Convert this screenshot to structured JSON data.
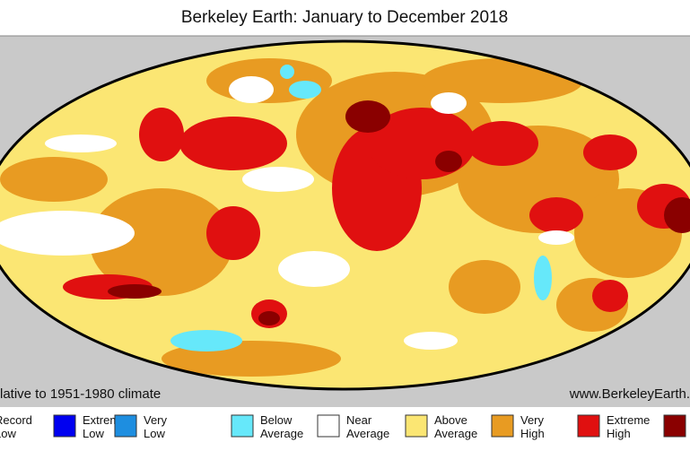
{
  "header": {
    "title": "Berkeley Earth: January to December 2018"
  },
  "footer": {
    "caption": "lative to 1951-1980 climate",
    "source": "www.BerkeleyEarth."
  },
  "legend": [
    {
      "label": "Record Low",
      "color": "#00008c"
    },
    {
      "label": "Extreme Low",
      "color": "#0000f0"
    },
    {
      "label": "Very Low",
      "color": "#1e8ee0"
    },
    {
      "label": "Below Average",
      "color": "#66e8fa"
    },
    {
      "label": "Near Average",
      "color": "#ffffff"
    },
    {
      "label": "Above Average",
      "color": "#fbe673"
    },
    {
      "label": "Very High",
      "color": "#e89b22"
    },
    {
      "label": "Extreme High",
      "color": "#e01010"
    },
    {
      "color": "#8a0000"
    }
  ]
}
